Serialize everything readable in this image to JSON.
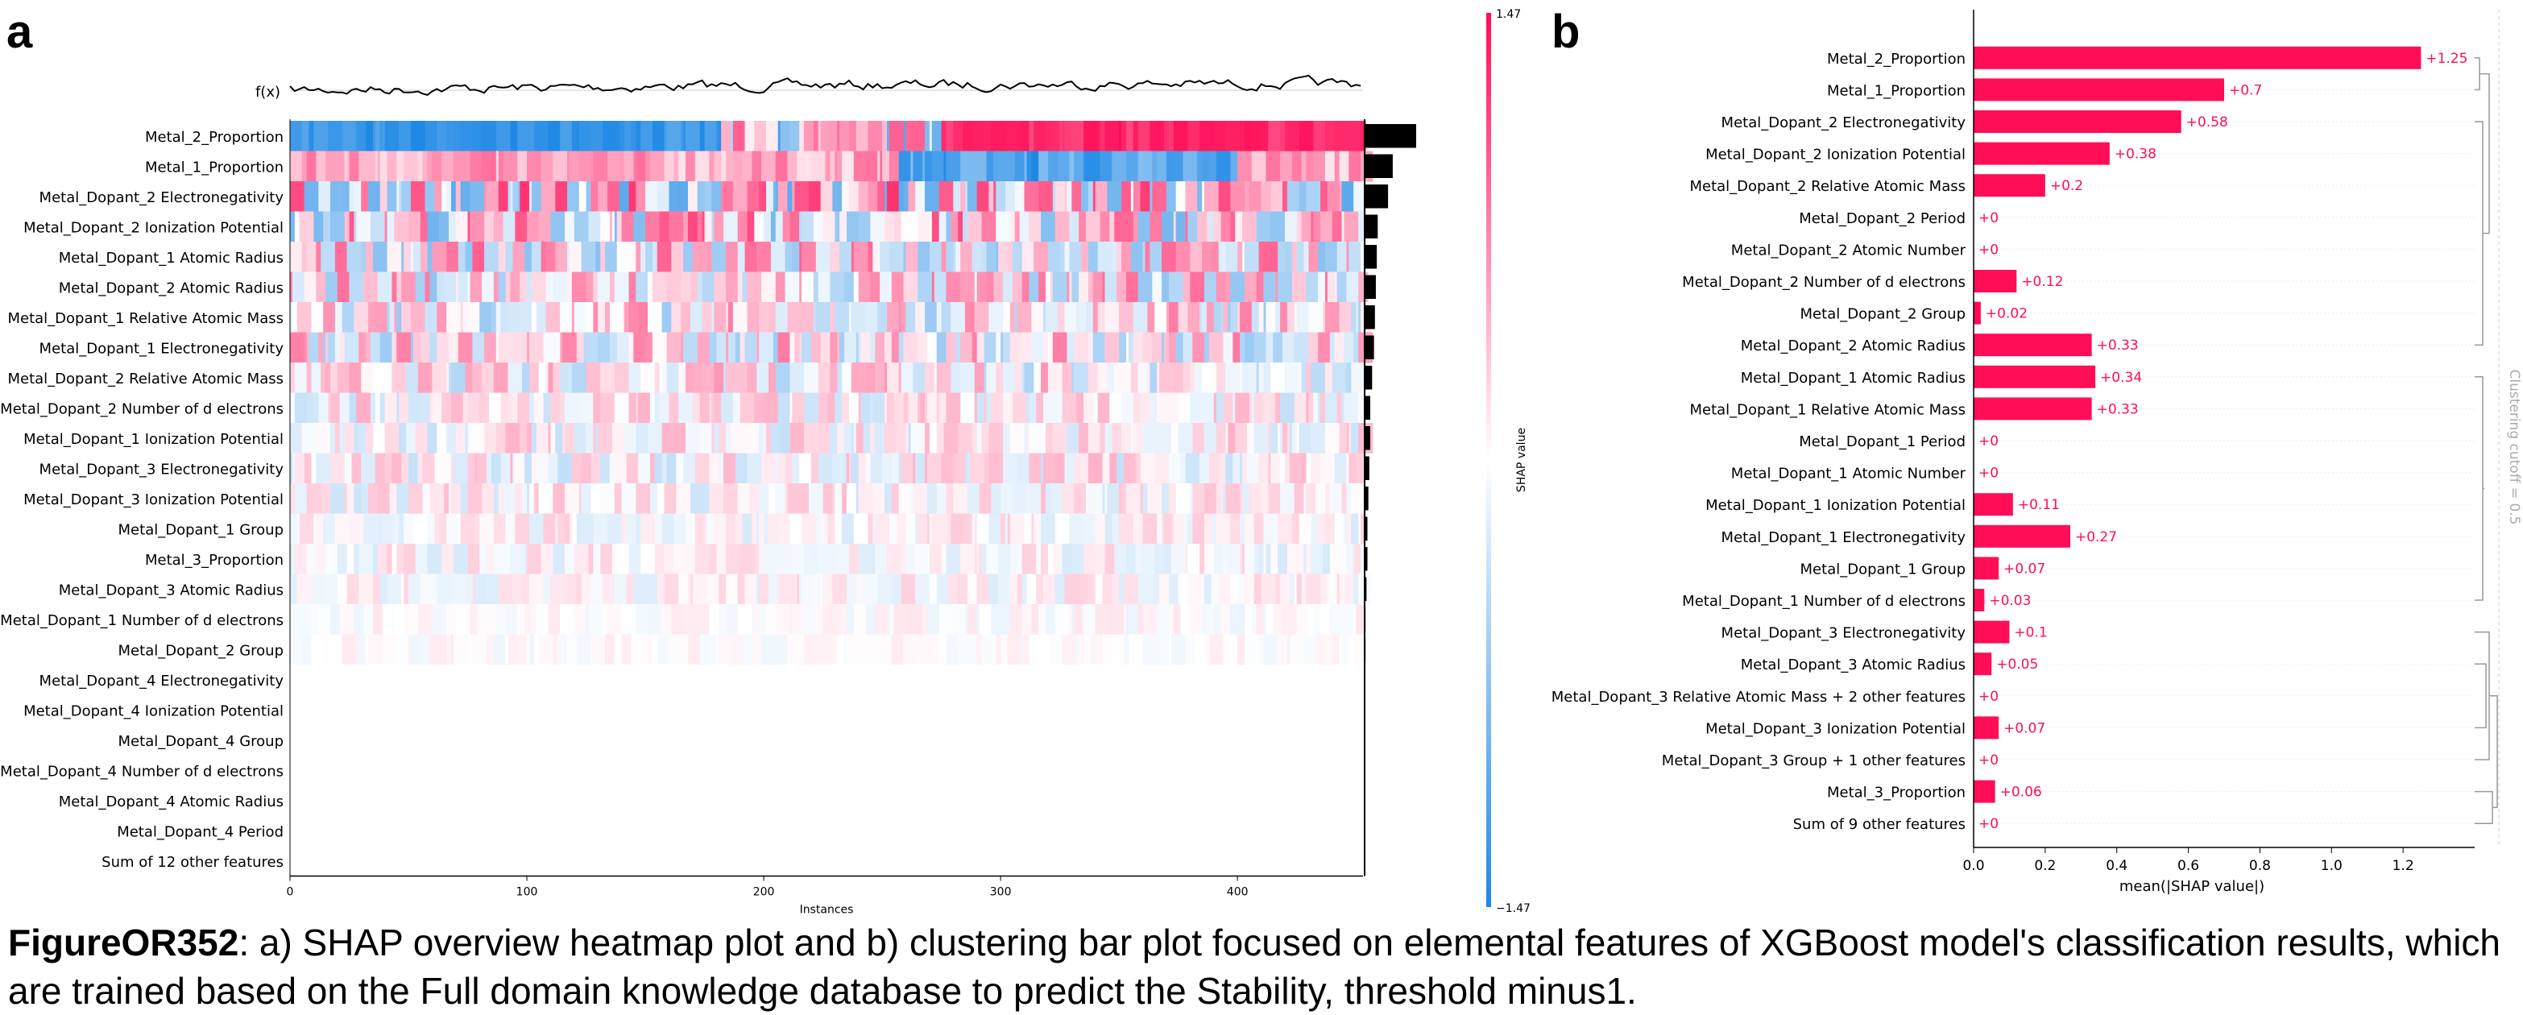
{
  "panels": {
    "a": "a",
    "b": "b"
  },
  "caption": {
    "label": "FigureOR352",
    "text": ": a) SHAP overview heatmap plot and b) clustering bar plot focused on elemental features of XGBoost model's classification results, which are trained based on the Full domain knowledge database to predict the Stability, threshold minus1."
  },
  "colors": {
    "positive": "#ff0d57",
    "negative": "#1e88e5",
    "neutral": "#ffffff",
    "bar_text": "#ff0d57",
    "dendrogram": "#999999"
  },
  "chart_data": [
    {
      "type": "heatmap",
      "title": "",
      "fx_label": "f(x)",
      "xlabel": "Instances",
      "x_ticks": [
        0,
        100,
        200,
        300,
        400
      ],
      "x_range": [
        0,
        453
      ],
      "colorbar": {
        "label": "SHAP value",
        "max_label": "1.47",
        "min_label": "−1.47",
        "range": [
          -1.47,
          1.47
        ]
      },
      "features": [
        "Metal_2_Proportion",
        "Metal_1_Proportion",
        "Metal_Dopant_2 Electronegativity",
        "Metal_Dopant_2 Ionization Potential",
        "Metal_Dopant_1 Atomic Radius",
        "Metal_Dopant_2 Atomic Radius",
        "Metal_Dopant_1 Relative Atomic Mass",
        "Metal_Dopant_1 Electronegativity",
        "Metal_Dopant_2 Relative Atomic Mass",
        "Metal_Dopant_2 Number of d electrons",
        "Metal_Dopant_1 Ionization Potential",
        "Metal_Dopant_3 Electronegativity",
        "Metal_Dopant_3 Ionization Potential",
        "Metal_Dopant_1 Group",
        "Metal_3_Proportion",
        "Metal_Dopant_3 Atomic Radius",
        "Metal_Dopant_1 Number of d electrons",
        "Metal_Dopant_2 Group",
        "Metal_Dopant_4 Electronegativity",
        "Metal_Dopant_4 Ionization Potential",
        "Metal_Dopant_4 Group",
        "Metal_Dopant_4 Number of d electrons",
        "Metal_Dopant_4 Atomic Radius",
        "Metal_Dopant_4 Period",
        "Sum of 12 other features"
      ],
      "importance": [
        0.55,
        0.3,
        0.25,
        0.14,
        0.13,
        0.12,
        0.11,
        0.1,
        0.08,
        0.06,
        0.06,
        0.05,
        0.04,
        0.03,
        0.03,
        0.02,
        0.01,
        0.01,
        0,
        0,
        0,
        0,
        0,
        0,
        0
      ],
      "row_intensity": [
        1.0,
        0.85,
        0.8,
        0.7,
        0.6,
        0.55,
        0.5,
        0.5,
        0.4,
        0.3,
        0.3,
        0.3,
        0.25,
        0.2,
        0.2,
        0.18,
        0.1,
        0.08,
        0,
        0,
        0,
        0,
        0,
        0,
        0
      ]
    },
    {
      "type": "bar",
      "title": "",
      "xlabel": "mean(|SHAP value|)",
      "xlim": [
        0,
        1.4
      ],
      "x_ticks": [
        0.0,
        0.2,
        0.4,
        0.6,
        0.8,
        1.0,
        1.2
      ],
      "x_tick_labels": [
        "0.0",
        "0.2",
        "0.4",
        "0.6",
        "0.8",
        "1.0",
        "1.2"
      ],
      "cutoff_label": "Clustering cutoff = 0.5",
      "categories": [
        "Metal_2_Proportion",
        "Metal_1_Proportion",
        "Metal_Dopant_2 Electronegativity",
        "Metal_Dopant_2 Ionization Potential",
        "Metal_Dopant_2 Relative Atomic Mass",
        "Metal_Dopant_2 Period",
        "Metal_Dopant_2 Atomic Number",
        "Metal_Dopant_2 Number of d electrons",
        "Metal_Dopant_2 Group",
        "Metal_Dopant_2 Atomic Radius",
        "Metal_Dopant_1 Atomic Radius",
        "Metal_Dopant_1 Relative Atomic Mass",
        "Metal_Dopant_1 Period",
        "Metal_Dopant_1 Atomic Number",
        "Metal_Dopant_1 Ionization Potential",
        "Metal_Dopant_1 Electronegativity",
        "Metal_Dopant_1 Group",
        "Metal_Dopant_1 Number of d electrons",
        "Metal_Dopant_3 Electronegativity",
        "Metal_Dopant_3 Atomic Radius",
        "Metal_Dopant_3 Relative Atomic Mass + 2 other features",
        "Metal_Dopant_3 Ionization Potential",
        "Metal_Dopant_3 Group + 1 other features",
        "Metal_3_Proportion",
        "Sum of 9 other features"
      ],
      "values": [
        1.25,
        0.7,
        0.58,
        0.38,
        0.2,
        0,
        0,
        0.12,
        0.02,
        0.33,
        0.34,
        0.33,
        0,
        0,
        0.11,
        0.27,
        0.07,
        0.03,
        0.1,
        0.05,
        0,
        0.07,
        0,
        0.06,
        0
      ],
      "value_labels": [
        "+1.25",
        "+0.7",
        "+0.58",
        "+0.38",
        "+0.2",
        "+0",
        "+0",
        "+0.12",
        "+0.02",
        "+0.33",
        "+0.34",
        "+0.33",
        "+0",
        "+0",
        "+0.11",
        "+0.27",
        "+0.07",
        "+0.03",
        "+0.1",
        "+0.05",
        "+0",
        "+0.07",
        "+0",
        "+0.06",
        "+0"
      ]
    }
  ]
}
